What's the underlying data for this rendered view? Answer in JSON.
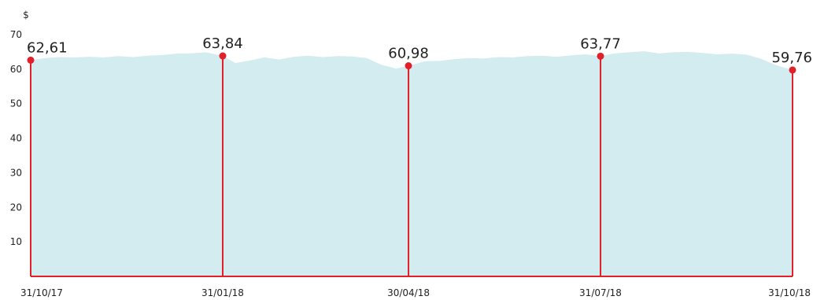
{
  "chart_data": {
    "type": "area",
    "title": "",
    "xlabel": "",
    "ylabel": "$",
    "ylim": [
      0,
      70
    ],
    "y_ticks": [
      "10",
      "20",
      "30",
      "40",
      "50",
      "60",
      "70"
    ],
    "x_ticks": [
      "31/10/17",
      "31/01/18",
      "30/04/18",
      "31/07/18",
      "31/10/18"
    ],
    "grid": false,
    "legend": "none",
    "colors": {
      "area": "#d3ecef",
      "marker": "#e3202a",
      "line": "#e3202a",
      "text": "#222222"
    },
    "markers": [
      {
        "date": "31/10/17",
        "value": 62.61,
        "label": "62,61"
      },
      {
        "date": "31/01/18",
        "value": 63.84,
        "label": "63,84"
      },
      {
        "date": "30/04/18",
        "value": 60.98,
        "label": "60,98"
      },
      {
        "date": "31/07/18",
        "value": 63.77,
        "label": "63,77"
      },
      {
        "date": "31/10/18",
        "value": 59.76,
        "label": "59,76"
      }
    ],
    "series": [
      {
        "x": [
          "31/10/17",
          "07/11/17",
          "14/11/17",
          "21/11/17",
          "28/11/17",
          "05/12/17",
          "12/12/17",
          "19/12/17",
          "26/12/17",
          "02/01/18",
          "09/01/18",
          "16/01/18",
          "23/01/18",
          "31/01/18",
          "06/02/18",
          "13/02/18",
          "20/02/18",
          "27/02/18",
          "06/03/18",
          "13/03/18",
          "20/03/18",
          "27/03/18",
          "03/04/18",
          "10/04/18",
          "17/04/18",
          "24/04/18",
          "30/04/18",
          "08/05/18",
          "15/05/18",
          "22/05/18",
          "29/05/18",
          "05/06/18",
          "12/06/18",
          "19/06/18",
          "26/06/18",
          "03/07/18",
          "10/07/18",
          "17/07/18",
          "24/07/18",
          "31/07/18",
          "07/08/18",
          "14/08/18",
          "21/08/18",
          "28/08/18",
          "04/09/18",
          "11/09/18",
          "18/09/18",
          "25/09/18",
          "02/10/18",
          "09/10/18",
          "16/10/18",
          "23/10/18",
          "31/10/18"
        ],
        "values": [
          62.61,
          63.2,
          63.5,
          63.4,
          63.6,
          63.4,
          63.8,
          63.5,
          63.9,
          64.1,
          64.5,
          64.6,
          64.9,
          63.84,
          61.8,
          62.5,
          63.4,
          62.8,
          63.6,
          63.9,
          63.5,
          63.8,
          63.7,
          63.2,
          61.3,
          60.2,
          60.98,
          62.3,
          62.4,
          62.9,
          63.2,
          63.1,
          63.5,
          63.4,
          63.8,
          63.9,
          63.6,
          64.0,
          64.3,
          63.77,
          64.6,
          64.9,
          65.2,
          64.6,
          64.9,
          65.0,
          64.7,
          64.3,
          64.5,
          64.2,
          63.0,
          61.2,
          59.76
        ]
      }
    ]
  }
}
